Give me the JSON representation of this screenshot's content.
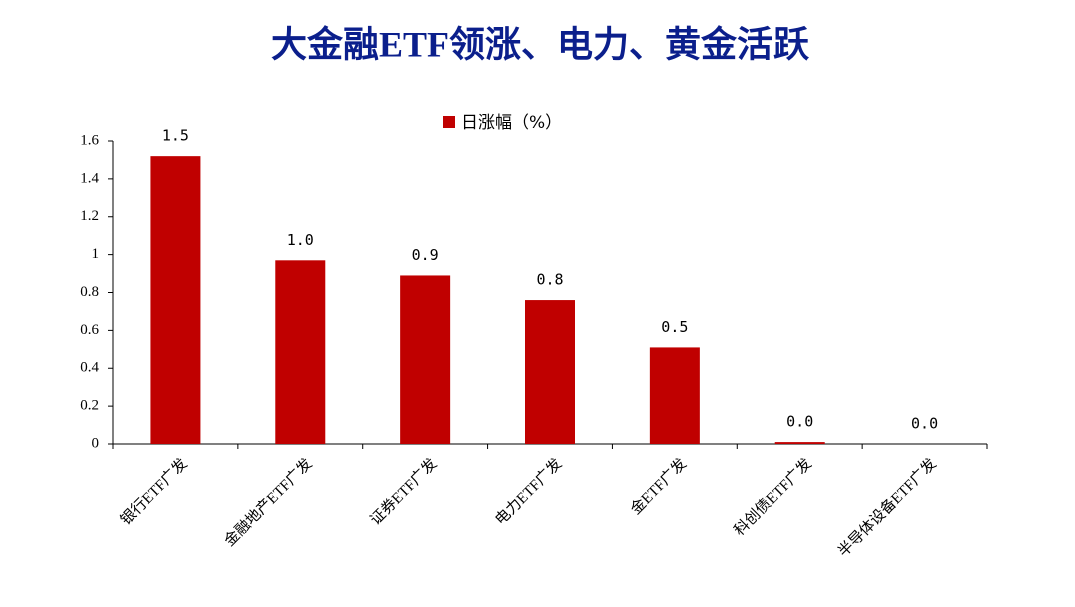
{
  "chart_data": {
    "type": "bar",
    "title": "大金融ETF领涨、电力、黄金活跃",
    "categories": [
      "银行ETF广发",
      "金融地产ETF广发",
      "证券ETF广发",
      "电力ETF广发",
      "金ETF广发",
      "科创债ETF广发",
      "半导体设备ETF广发"
    ],
    "series": [
      {
        "name": "日涨幅（%）",
        "color": "#c00000",
        "values": [
          1.52,
          0.97,
          0.89,
          0.76,
          0.51,
          0.01,
          0.0
        ],
        "value_labels": [
          "1.5",
          "1.0",
          "0.9",
          "0.8",
          "0.5",
          "0.0",
          "0.0"
        ]
      }
    ],
    "ylim": [
      0,
      1.6
    ],
    "yticks": [
      0,
      0.2,
      0.4,
      0.6,
      0.8,
      1,
      1.2,
      1.4,
      1.6
    ],
    "legend": "top"
  }
}
